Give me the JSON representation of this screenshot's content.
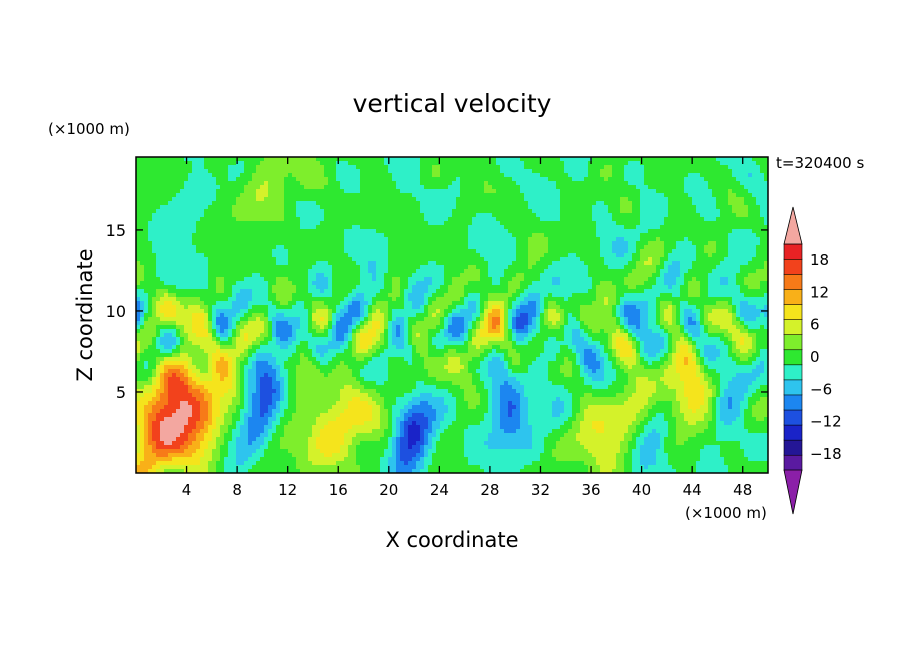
{
  "chart_data": {
    "type": "heatmap",
    "title": "vertical velocity",
    "xlabel": "X coordinate",
    "ylabel": "Z coordinate",
    "x_unit": "(×1000 m)",
    "y_unit": "(×1000 m)",
    "time_label": "t=320400 s",
    "xlim": [
      0,
      50
    ],
    "ylim": [
      0,
      19.5
    ],
    "x_ticks": [
      4,
      8,
      12,
      16,
      20,
      24,
      28,
      32,
      36,
      40,
      44,
      48
    ],
    "y_ticks": [
      5,
      10,
      15
    ],
    "colorbar": {
      "levels": [
        -21,
        -18,
        -15,
        -12,
        -9,
        -6,
        -3,
        0,
        3,
        6,
        9,
        12,
        15,
        18,
        21
      ],
      "tick_values": [
        -18,
        -12,
        -6,
        0,
        6,
        12,
        18
      ],
      "tick_labels": [
        "−18",
        "−12",
        "−6",
        "0",
        "6",
        "12",
        "18"
      ],
      "under_color": "#8b1fa8",
      "over_color": "#f3a7a0",
      "colors": [
        "#5a1aa0",
        "#241696",
        "#1a23c8",
        "#1d50e0",
        "#1c86f0",
        "#2ec4ee",
        "#2ef0c8",
        "#2ee830",
        "#7eee2c",
        "#d4f22a",
        "#f5e41c",
        "#f9b018",
        "#f77a18",
        "#f2421c",
        "#e82224"
      ]
    },
    "features": [
      {
        "x": 3.3,
        "z": 3.6,
        "w": 22
      },
      {
        "x": 16.0,
        "z": 3.0,
        "w": 9.5
      },
      {
        "x": 37.5,
        "z": 2.4,
        "w": 7
      },
      {
        "x": 43.8,
        "z": 4.6,
        "w": 10
      },
      {
        "x": 10.0,
        "z": 4.2,
        "w": -12
      },
      {
        "x": 21.8,
        "z": 2.6,
        "w": -14
      },
      {
        "x": 29.5,
        "z": 3.5,
        "w": -10
      },
      {
        "x": 41.0,
        "z": 2.2,
        "w": -11
      },
      {
        "x": 46.8,
        "z": 4.5,
        "w": -10
      },
      {
        "x": 33.5,
        "z": 5.0,
        "w": -3
      },
      {
        "x": 10.0,
        "z": 17.8,
        "w": 4
      },
      {
        "x": 4.5,
        "z": 17.0,
        "w": -4
      },
      {
        "x": 17.0,
        "z": 11.0,
        "w": -2.5
      },
      {
        "x": 26.0,
        "z": 7.0,
        "w": 3
      }
    ]
  }
}
